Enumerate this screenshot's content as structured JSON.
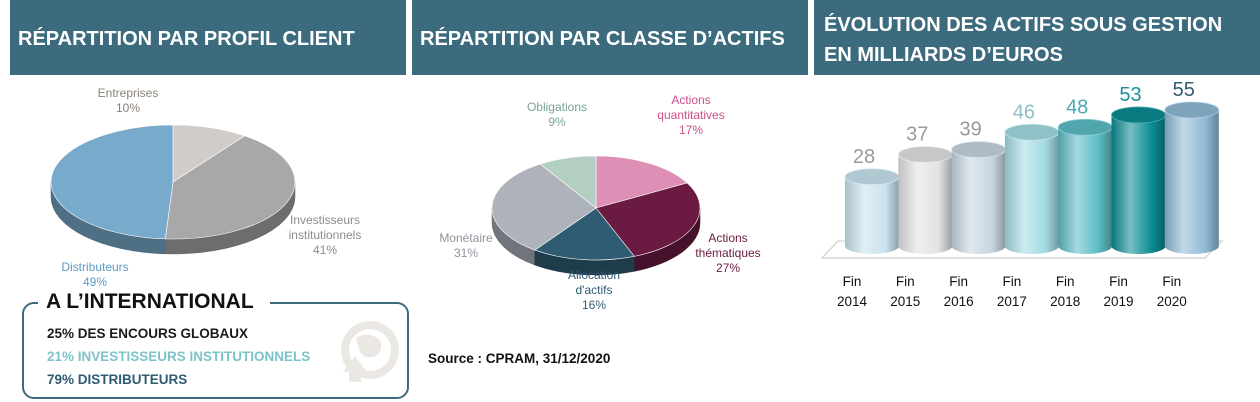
{
  "headers": {
    "profile": "RÉPARTITION PAR PROFIL CLIENT",
    "asset_class": "RÉPARTITION PAR CLASSE D’ACTIFS",
    "evolution_line1": "ÉVOLUTION DES ACTIFS SOUS GESTION",
    "evolution_line2": "EN MILLIARDS D’EUROS"
  },
  "international": {
    "title": "A L’INTERNATIONAL",
    "line1": "25% DES ENCOURS GLOBAUX",
    "line2": "21% INVESTISSEURS INSTITUTIONNELS",
    "line3": "79% DISTRIBUTEURS",
    "icon": "globe-arrow-icon"
  },
  "source": "Source : CPRAM, 31/12/2020",
  "chart_data": [
    {
      "type": "pie",
      "title": "RÉPARTITION PAR PROFIL CLIENT",
      "labels": [
        "Entreprises",
        "Investisseurs institutionnels",
        "Distributeurs"
      ],
      "values": [
        10,
        41,
        49
      ],
      "value_labels": [
        "10%",
        "41%",
        "49%"
      ],
      "colors": [
        "#d2ccc8",
        "#a8a8a8",
        "#78aacb"
      ]
    },
    {
      "type": "pie",
      "title": "RÉPARTITION PAR CLASSE D’ACTIFS",
      "labels": [
        "Actions quantitatives",
        "Actions thématiques",
        "Allocation d'actifs",
        "Monétaire",
        "Obligations"
      ],
      "values": [
        17,
        27,
        16,
        31,
        9
      ],
      "value_labels": [
        "17%",
        "27%",
        "16%",
        "31%",
        "9%"
      ],
      "colors": [
        "#dd8fb5",
        "#6b1a42",
        "#2f5c73",
        "#aeb3bb",
        "#b2cfc2"
      ]
    },
    {
      "type": "bar",
      "title": "ÉVOLUTION DES ACTIFS SOUS GESTION EN MILLIARDS D’EUROS",
      "categories": [
        "Fin 2014",
        "Fin 2015",
        "Fin 2016",
        "Fin 2017",
        "Fin 2018",
        "Fin 2019",
        "Fin 2020"
      ],
      "values": [
        28,
        37,
        39,
        46,
        48,
        53,
        55
      ],
      "colors": [
        "#c9e2ee",
        "#e2e2e4",
        "#c6d6e1",
        "#a3dbe2",
        "#5cbcc4",
        "#0a8b92",
        "#8fbad6"
      ],
      "value_label_colors": [
        "#999999",
        "#999999",
        "#999999",
        "#8fbfc6",
        "#4aabb5",
        "#1a8f97",
        "#2f5c73"
      ]
    }
  ]
}
